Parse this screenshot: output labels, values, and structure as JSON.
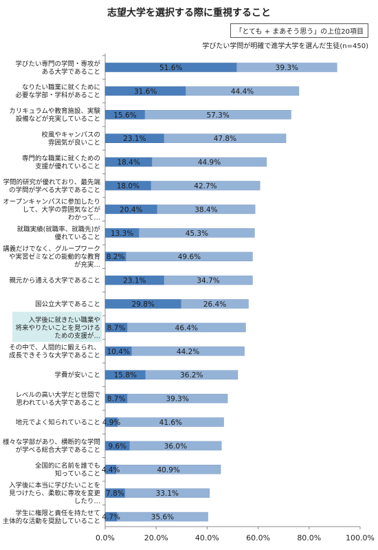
{
  "chart_data": {
    "type": "bar",
    "orientation": "horizontal",
    "stacked": true,
    "title": "志望大学を選択する際に重視すること",
    "badge": "「とても + まあそう思う」の上位20項目",
    "subtitle": "学びたい学問が明確で進学大学を選んだ生徒(n=450)",
    "categories": [
      [
        "学びたい専門の学問・専攻が",
        "ある大学であること"
      ],
      [
        "なりたい職業に就くために",
        "必要な学部・学科があること"
      ],
      [
        "カリキュラムや教育施設、実験",
        "設備などが充実していること"
      ],
      [
        "校風やキャンパスの",
        "雰囲気が良いこと"
      ],
      [
        "専門的な職業に就くための",
        "支援が優れていること"
      ],
      [
        "学問的研究が優れており、最先端",
        "の学問が学べる大学であること"
      ],
      [
        "オープンキャンパスに参加したり",
        "して、大学の雰囲気などが",
        "わかって…"
      ],
      [
        "就職実績(就職率、就職先)が",
        "優れていること"
      ],
      [
        "講義だけでなく、グループワーク",
        "や実習ゼミなどの能動的な教育",
        "が充実…"
      ],
      [
        "親元から通える大学であること"
      ],
      [
        "国公立大学であること"
      ],
      [
        "入学後に就きたい職業や",
        "将来やりたいことを見つける",
        "ための支援が…"
      ],
      [
        "その中で、人間的に鍛えられ、",
        "成長できそうな大学であること"
      ],
      [
        "学費が安いこと"
      ],
      [
        "レベルの高い大学だと世間で",
        "思われている大学であること"
      ],
      [
        "地元でよく知られていること"
      ],
      [
        "様々な学部があり、横断的な学問",
        "が学べる総合大学であること"
      ],
      [
        "全国的に名前を誰でも",
        "知っていること"
      ],
      [
        "入学後に本当に学びたいことを",
        "見つけたら、柔軟に専攻を変更",
        "したり…"
      ],
      [
        "学生に権限と責任を持たせて",
        "主体的な活動を奨励していること"
      ]
    ],
    "highlight_index": 11,
    "series": [
      {
        "key": "totemo",
        "values": [
          51.6,
          31.6,
          15.6,
          23.1,
          18.4,
          18.0,
          20.4,
          13.3,
          8.2,
          23.1,
          29.8,
          8.7,
          10.4,
          15.8,
          8.7,
          4.9,
          9.6,
          4.4,
          7.8,
          4.7
        ],
        "labels": [
          "51.6%",
          "31.6%",
          "15.6%",
          "23.1%",
          "18.4%",
          "18.0%",
          "20.4%",
          "13.3%",
          "8.2%",
          "23.1%",
          "29.8%",
          "8.7%",
          "10.4%",
          "15.8%",
          "8.7%",
          "4.9%",
          "9.6%",
          "4.4%",
          "7.8%",
          "4.7%"
        ]
      },
      {
        "key": "maa",
        "values": [
          39.3,
          44.4,
          57.3,
          47.8,
          44.9,
          42.7,
          38.4,
          45.3,
          49.6,
          34.7,
          26.4,
          46.4,
          44.2,
          36.2,
          39.3,
          41.6,
          36.0,
          40.9,
          33.1,
          35.6
        ],
        "labels": [
          "39.3%",
          "44.4%",
          "57.3%",
          "47.8%",
          "44.9%",
          "42.7%",
          "38.4%",
          "45.3%",
          "49.6%",
          "34.7%",
          "26.4%",
          "46.4%",
          "44.2%",
          "36.2%",
          "39.3%",
          "41.6%",
          "36.0%",
          "40.9%",
          "33.1%",
          "35.6%"
        ]
      }
    ],
    "xlim": [
      0,
      100
    ],
    "xticks": [
      0,
      20,
      40,
      60,
      80,
      100
    ],
    "xtick_labels": [
      "0.0%",
      "20.0%",
      "40.0%",
      "60.0%",
      "80.0%",
      "100.0%"
    ],
    "grid": false,
    "legend": "none",
    "colors": {
      "totemo": "#4a7ebb",
      "maa": "#95b3d7",
      "highlight_bg": "#d5ecee",
      "axis": "#888888"
    }
  }
}
